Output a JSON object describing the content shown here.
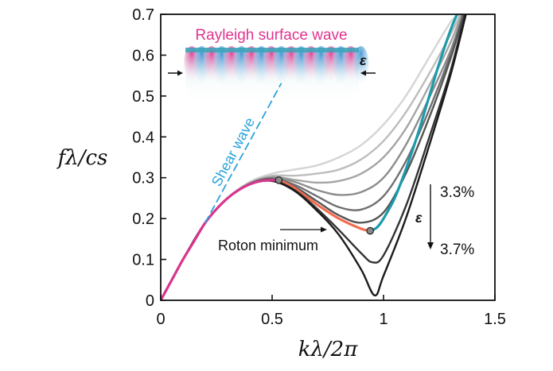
{
  "chart_data": {
    "type": "line",
    "title": "",
    "xlabel": "kλ/2π",
    "ylabel": "fλ/cs",
    "xlim": [
      0,
      1.5
    ],
    "ylim": [
      0,
      0.7
    ],
    "xticks": [
      0,
      0.5,
      1,
      1.5
    ],
    "xtick_labels": [
      "0",
      "0.5",
      "1",
      "1.5"
    ],
    "yticks": [
      0,
      0.1,
      0.2,
      0.3,
      0.4,
      0.5,
      0.6,
      0.7
    ],
    "ytick_labels": [
      "0",
      "0.1",
      "0.2",
      "0.3",
      "0.4",
      "0.5",
      "0.6",
      "0.7"
    ],
    "grid": false,
    "series": [
      {
        "name": "curve-1",
        "color": "#d4d4d4",
        "x": [
          0,
          0.1,
          0.2,
          0.3,
          0.4,
          0.5,
          0.6,
          0.7,
          0.8,
          0.9,
          1.0,
          1.1,
          1.2,
          1.3,
          1.34
        ],
        "y": [
          0,
          0.1,
          0.19,
          0.25,
          0.29,
          0.31,
          0.32,
          0.33,
          0.35,
          0.38,
          0.43,
          0.5,
          0.59,
          0.68,
          0.7
        ]
      },
      {
        "name": "curve-2",
        "color": "#bdbdbd",
        "x": [
          0,
          0.1,
          0.2,
          0.3,
          0.4,
          0.5,
          0.6,
          0.7,
          0.8,
          0.9,
          1.0,
          1.1,
          1.2,
          1.3,
          1.345
        ],
        "y": [
          0,
          0.1,
          0.19,
          0.25,
          0.288,
          0.305,
          0.305,
          0.31,
          0.32,
          0.345,
          0.39,
          0.46,
          0.55,
          0.65,
          0.7
        ]
      },
      {
        "name": "curve-3",
        "color": "#a5a5a5",
        "x": [
          0,
          0.1,
          0.2,
          0.3,
          0.4,
          0.5,
          0.6,
          0.7,
          0.8,
          0.9,
          1.0,
          1.1,
          1.2,
          1.3,
          1.35
        ],
        "y": [
          0,
          0.1,
          0.19,
          0.25,
          0.287,
          0.302,
          0.295,
          0.288,
          0.292,
          0.31,
          0.35,
          0.42,
          0.52,
          0.63,
          0.7
        ]
      },
      {
        "name": "curve-4",
        "color": "#8c8c8c",
        "x": [
          0,
          0.1,
          0.2,
          0.3,
          0.4,
          0.5,
          0.6,
          0.7,
          0.8,
          0.9,
          1.0,
          1.1,
          1.2,
          1.3,
          1.355
        ],
        "y": [
          0,
          0.1,
          0.19,
          0.25,
          0.286,
          0.3,
          0.29,
          0.27,
          0.258,
          0.265,
          0.3,
          0.38,
          0.49,
          0.61,
          0.7
        ]
      },
      {
        "name": "curve-5",
        "color": "#6f6f6f",
        "x": [
          0,
          0.1,
          0.2,
          0.3,
          0.4,
          0.5,
          0.6,
          0.7,
          0.8,
          0.9,
          1.0,
          1.1,
          1.2,
          1.3,
          1.358
        ],
        "y": [
          0,
          0.1,
          0.19,
          0.25,
          0.285,
          0.298,
          0.283,
          0.255,
          0.228,
          0.222,
          0.255,
          0.34,
          0.46,
          0.6,
          0.7
        ]
      },
      {
        "name": "curve-6",
        "color": "#555555",
        "x": [
          0,
          0.1,
          0.2,
          0.3,
          0.4,
          0.5,
          0.6,
          0.7,
          0.8,
          0.9,
          1.0,
          1.1,
          1.2,
          1.3,
          1.36
        ],
        "y": [
          0,
          0.1,
          0.19,
          0.25,
          0.285,
          0.296,
          0.278,
          0.243,
          0.208,
          0.19,
          0.215,
          0.31,
          0.44,
          0.59,
          0.7
        ]
      },
      {
        "name": "curve-teal",
        "color": "#1b9aaa",
        "x": [
          0.94,
          0.97,
          1.0,
          1.05,
          1.1,
          1.15,
          1.2,
          1.25,
          1.3,
          1.33
        ],
        "y": [
          0.17,
          0.178,
          0.2,
          0.25,
          0.32,
          0.4,
          0.49,
          0.58,
          0.66,
          0.7
        ]
      },
      {
        "name": "curve-orange",
        "color": "#f26b4f",
        "x": [
          0.53,
          0.6,
          0.7,
          0.8,
          0.9,
          0.94
        ],
        "y": [
          0.294,
          0.275,
          0.235,
          0.2,
          0.175,
          0.17
        ]
      },
      {
        "name": "curve-7",
        "color": "#333333",
        "x": [
          0,
          0.1,
          0.2,
          0.3,
          0.4,
          0.5,
          0.6,
          0.7,
          0.8,
          0.9,
          0.95,
          1.0,
          1.1,
          1.2,
          1.3,
          1.365
        ],
        "y": [
          0,
          0.1,
          0.19,
          0.25,
          0.284,
          0.293,
          0.27,
          0.225,
          0.172,
          0.115,
          0.093,
          0.11,
          0.23,
          0.39,
          0.56,
          0.7
        ]
      },
      {
        "name": "curve-8",
        "color": "#1a1a1a",
        "x": [
          0,
          0.1,
          0.2,
          0.3,
          0.4,
          0.5,
          0.6,
          0.7,
          0.8,
          0.9,
          0.96,
          1.0,
          1.1,
          1.2,
          1.3,
          1.37
        ],
        "y": [
          0,
          0.1,
          0.19,
          0.25,
          0.284,
          0.292,
          0.268,
          0.22,
          0.16,
          0.075,
          0.012,
          0.06,
          0.2,
          0.37,
          0.55,
          0.7
        ]
      },
      {
        "name": "curve-magenta",
        "color": "#d9358e",
        "x": [
          0,
          0.05,
          0.1,
          0.15,
          0.2,
          0.25,
          0.3,
          0.35,
          0.4,
          0.45,
          0.5,
          0.53
        ],
        "y": [
          0,
          0.05,
          0.1,
          0.145,
          0.19,
          0.223,
          0.25,
          0.27,
          0.284,
          0.292,
          0.294,
          0.293
        ]
      },
      {
        "name": "shear-wave",
        "color": "#2aa3dc",
        "dashed": true,
        "x": [
          0.2,
          0.54
        ],
        "y": [
          0.19,
          0.53
        ]
      }
    ],
    "markers": [
      {
        "name": "local-max-marker",
        "x": 0.53,
        "y": 0.294
      },
      {
        "name": "roton-min-marker",
        "x": 0.94,
        "y": 0.17
      }
    ],
    "annotations": {
      "shear_wave": "Shear wave",
      "rayleigh": "Rayleigh surface wave",
      "epsilon": "ε",
      "roton": "Roton minimum",
      "strain_top": "3.3%",
      "strain_bottom": "3.7%"
    }
  }
}
